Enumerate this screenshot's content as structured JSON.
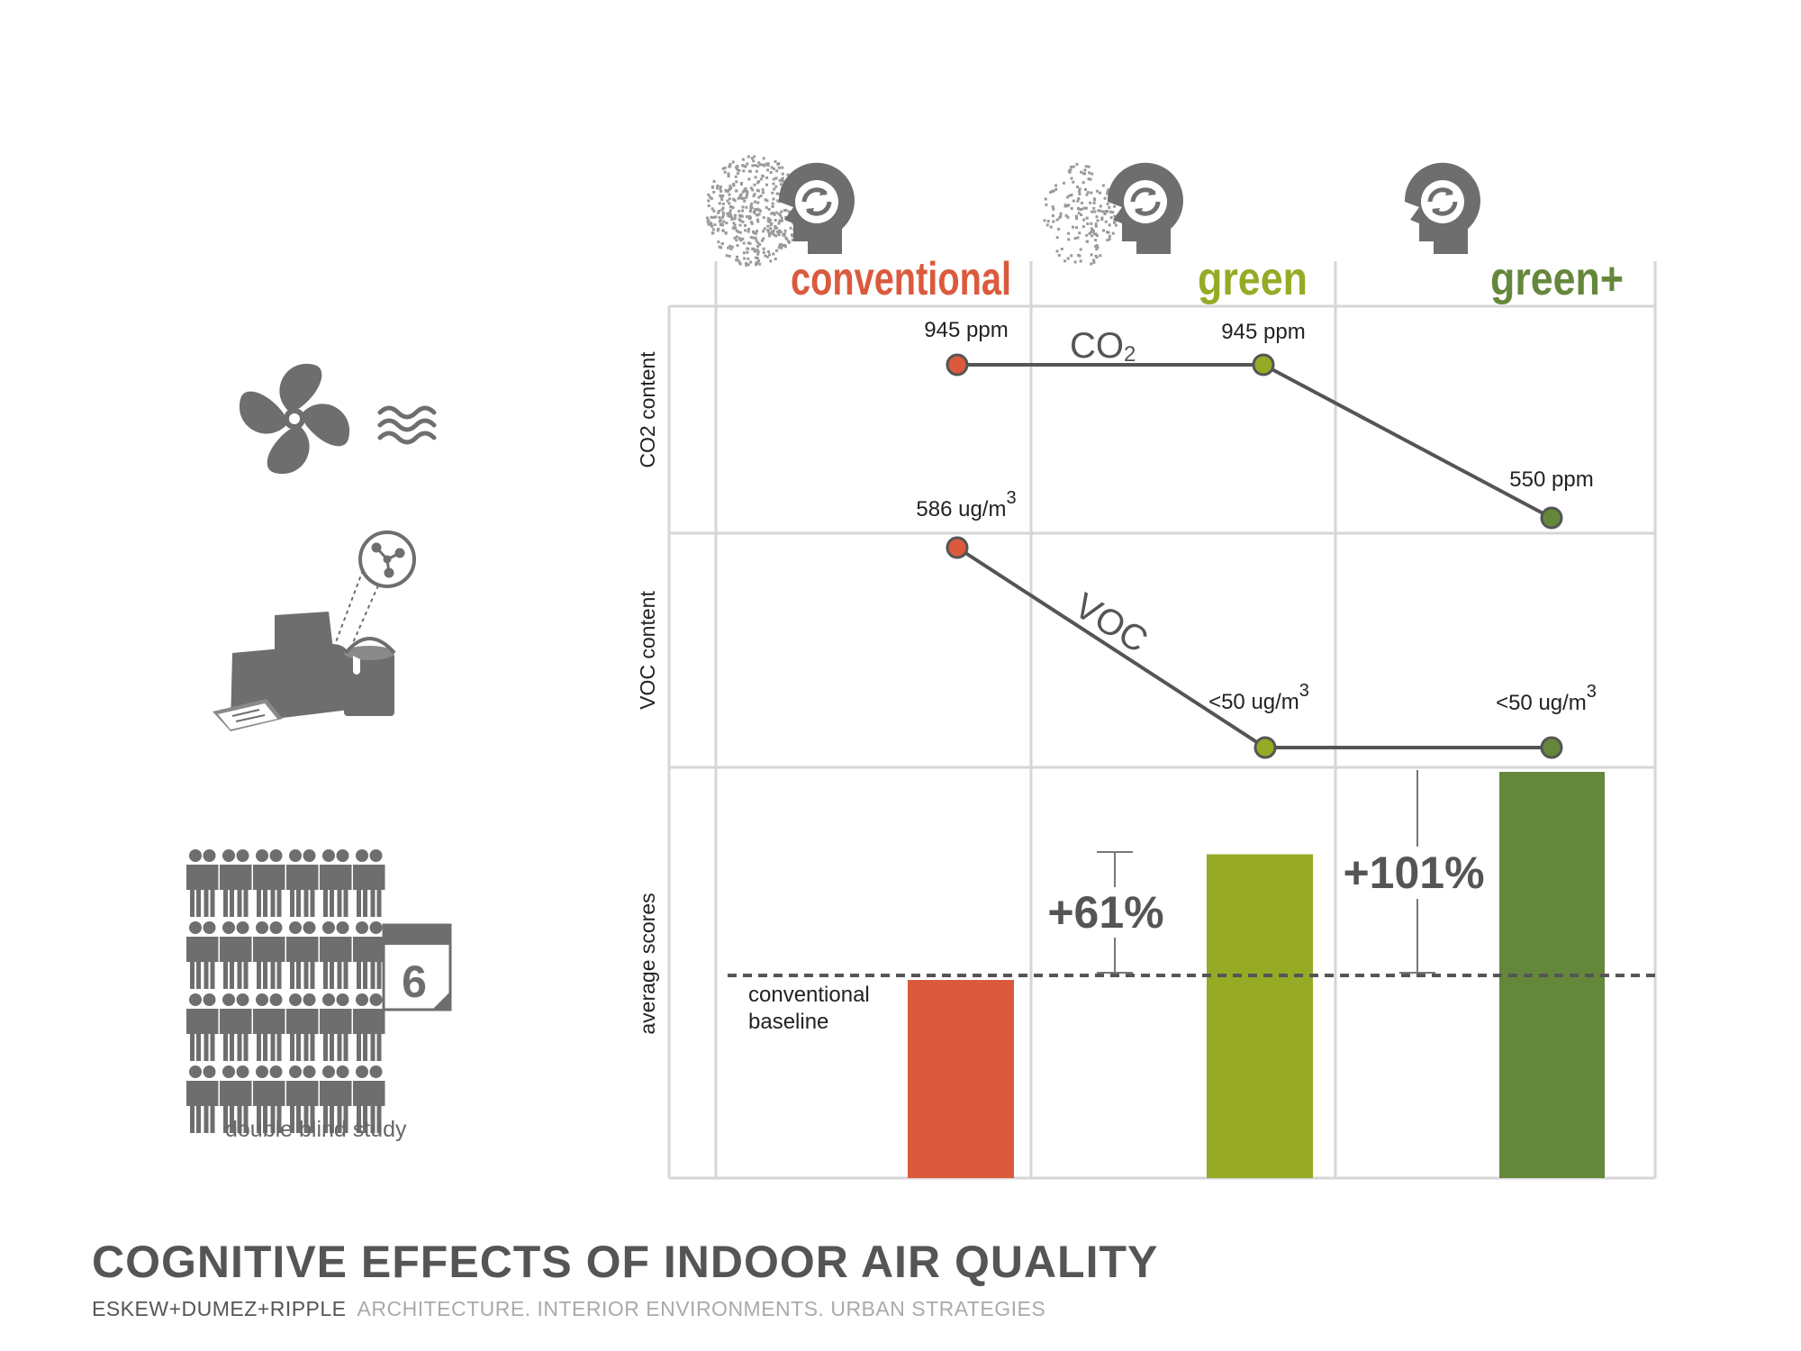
{
  "chart_data": {
    "type": "bar",
    "categories": [
      "conventional",
      "green",
      "green+"
    ],
    "category_colors": [
      "#db5a3d",
      "#97aa26",
      "#65873c"
    ],
    "co2": {
      "label": "CO2 content",
      "line_label": "CO",
      "line_label_sub": "2",
      "values": [
        945,
        945,
        550
      ],
      "data_labels": [
        "945 ppm",
        "945 ppm",
        "550 ppm"
      ],
      "shown_for": [
        0,
        1,
        2
      ]
    },
    "voc": {
      "label": "VOC content",
      "line_label": "VOC",
      "values": [
        586,
        50,
        50
      ],
      "data_labels": [
        "586 ug/m",
        "<50 ug/m",
        "<50 ug/m"
      ],
      "data_label_sup": "3"
    },
    "scores": {
      "label": "average scores",
      "values": [
        100,
        161,
        201
      ],
      "baseline": 100,
      "baseline_label": [
        "conventional",
        "baseline"
      ],
      "increase_labels": [
        "",
        "+61%",
        "+101%"
      ]
    },
    "grid": true
  },
  "icons": [
    "ventilation-fan-icon",
    "air-waves-icon",
    "printer-icon",
    "paint-can-icon",
    "molecule-icon",
    "people-group-icon",
    "calendar-icon",
    "head-cognition-icon",
    "particles-icon"
  ],
  "calendar_day": "6",
  "study_label": "double blind study",
  "footer": {
    "title": "COGNITIVE EFFECTS OF INDOOR AIR QUALITY",
    "firm": "ESKEW+DUMEZ+RIPPLE",
    "tagline": "ARCHITECTURE. INTERIOR ENVIRONMENTS. URBAN STRATEGIES"
  },
  "colors": {
    "conventional": "#db5a3d",
    "green": "#97aa26",
    "green_plus": "#65873c",
    "icon_gray": "#6e6e6e",
    "line_gray": "#555555",
    "grid_gray": "#d6d6d6"
  }
}
